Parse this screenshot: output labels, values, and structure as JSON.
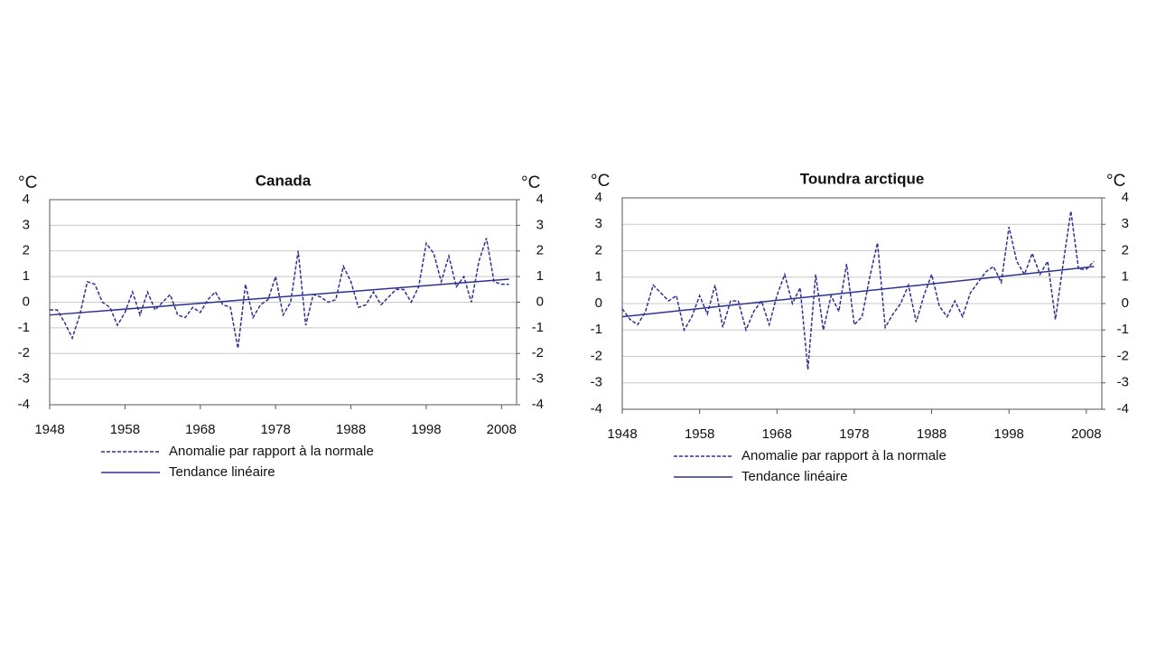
{
  "chart_data": [
    {
      "type": "line",
      "title": "Canada",
      "ylabel": "°C",
      "y2label": "°C",
      "x": [
        1948,
        1949,
        1950,
        1951,
        1952,
        1953,
        1954,
        1955,
        1956,
        1957,
        1958,
        1959,
        1960,
        1961,
        1962,
        1963,
        1964,
        1965,
        1966,
        1967,
        1968,
        1969,
        1970,
        1971,
        1972,
        1973,
        1974,
        1975,
        1976,
        1977,
        1978,
        1979,
        1980,
        1981,
        1982,
        1983,
        1984,
        1985,
        1986,
        1987,
        1988,
        1989,
        1990,
        1991,
        1992,
        1993,
        1994,
        1995,
        1996,
        1997,
        1998,
        1999,
        2000,
        2001,
        2002,
        2003,
        2004,
        2005,
        2006,
        2007,
        2008,
        2009
      ],
      "series": [
        {
          "name": "Anomalie par rapport à la normale",
          "color": "#2e3192",
          "dash": true,
          "values": [
            -0.3,
            -0.3,
            -0.8,
            -1.4,
            -0.5,
            0.8,
            0.7,
            0.0,
            -0.2,
            -0.9,
            -0.4,
            0.4,
            -0.5,
            0.4,
            -0.3,
            0.0,
            0.3,
            -0.5,
            -0.6,
            -0.2,
            -0.4,
            0.1,
            0.4,
            -0.1,
            -0.2,
            -1.8,
            0.7,
            -0.6,
            -0.1,
            0.1,
            1.0,
            -0.5,
            0.0,
            2.0,
            -0.9,
            0.3,
            0.2,
            0.0,
            0.1,
            1.4,
            0.8,
            -0.2,
            -0.1,
            0.4,
            -0.1,
            0.2,
            0.5,
            0.5,
            0.0,
            0.6,
            2.3,
            1.9,
            0.8,
            1.8,
            0.6,
            1.0,
            0.0,
            1.6,
            2.5,
            0.8,
            0.7,
            0.7
          ]
        },
        {
          "name": "Tendance linéaire",
          "color": "#2e3192",
          "dash": false,
          "x": [
            1948,
            2009
          ],
          "values": [
            -0.5,
            0.9
          ]
        }
      ],
      "xlim": [
        1948,
        2010
      ],
      "xticks": [
        1948,
        1958,
        1968,
        1978,
        1988,
        1998,
        2008
      ],
      "ylim": [
        -4,
        4
      ],
      "yticks": [
        -4,
        -3,
        -2,
        -1,
        0,
        1,
        2,
        3,
        4
      ],
      "y2lim": [
        -4,
        4
      ],
      "y2ticks": [
        -4,
        -3,
        -2,
        -1,
        0,
        1,
        2,
        3,
        4
      ],
      "grid": true,
      "legend": "bottom"
    },
    {
      "type": "line",
      "title": "Toundra arctique",
      "ylabel": "°C",
      "y2label": "°C",
      "x": [
        1948,
        1949,
        1950,
        1951,
        1952,
        1953,
        1954,
        1955,
        1956,
        1957,
        1958,
        1959,
        1960,
        1961,
        1962,
        1963,
        1964,
        1965,
        1966,
        1967,
        1968,
        1969,
        1970,
        1971,
        1972,
        1973,
        1974,
        1975,
        1976,
        1977,
        1978,
        1979,
        1980,
        1981,
        1982,
        1983,
        1984,
        1985,
        1986,
        1987,
        1988,
        1989,
        1990,
        1991,
        1992,
        1993,
        1994,
        1995,
        1996,
        1997,
        1998,
        1999,
        2000,
        2001,
        2002,
        2003,
        2004,
        2005,
        2006,
        2007,
        2008,
        2009
      ],
      "series": [
        {
          "name": "Anomalie par rapport à la normale",
          "color": "#2e3192",
          "dash": true,
          "values": [
            -0.2,
            -0.6,
            -0.8,
            -0.3,
            0.7,
            0.4,
            0.1,
            0.3,
            -1.0,
            -0.5,
            0.3,
            -0.4,
            0.7,
            -0.9,
            0.1,
            0.1,
            -1.0,
            -0.3,
            0.1,
            -0.8,
            0.3,
            1.1,
            0.0,
            0.6,
            -2.5,
            1.1,
            -1.0,
            0.3,
            -0.3,
            1.5,
            -0.8,
            -0.5,
            1.0,
            2.3,
            -0.9,
            -0.4,
            0.0,
            0.7,
            -0.7,
            0.3,
            1.1,
            -0.1,
            -0.5,
            0.1,
            -0.5,
            0.4,
            0.8,
            1.2,
            1.4,
            0.8,
            2.9,
            1.6,
            1.1,
            1.9,
            1.1,
            1.6,
            -0.6,
            1.5,
            3.5,
            1.3,
            1.3,
            1.6
          ]
        },
        {
          "name": "Tendance linéaire",
          "color": "#2e3192",
          "dash": false,
          "x": [
            1948,
            2009
          ],
          "values": [
            -0.5,
            1.4
          ]
        }
      ],
      "xlim": [
        1948,
        2010
      ],
      "xticks": [
        1948,
        1958,
        1968,
        1978,
        1988,
        1998,
        2008
      ],
      "ylim": [
        -4,
        4
      ],
      "yticks": [
        -4,
        -3,
        -2,
        -1,
        0,
        1,
        2,
        3,
        4
      ],
      "y2lim": [
        -4,
        4
      ],
      "y2ticks": [
        -4,
        -3,
        -2,
        -1,
        0,
        1,
        2,
        3,
        4
      ],
      "grid": true,
      "legend": "bottom"
    }
  ]
}
